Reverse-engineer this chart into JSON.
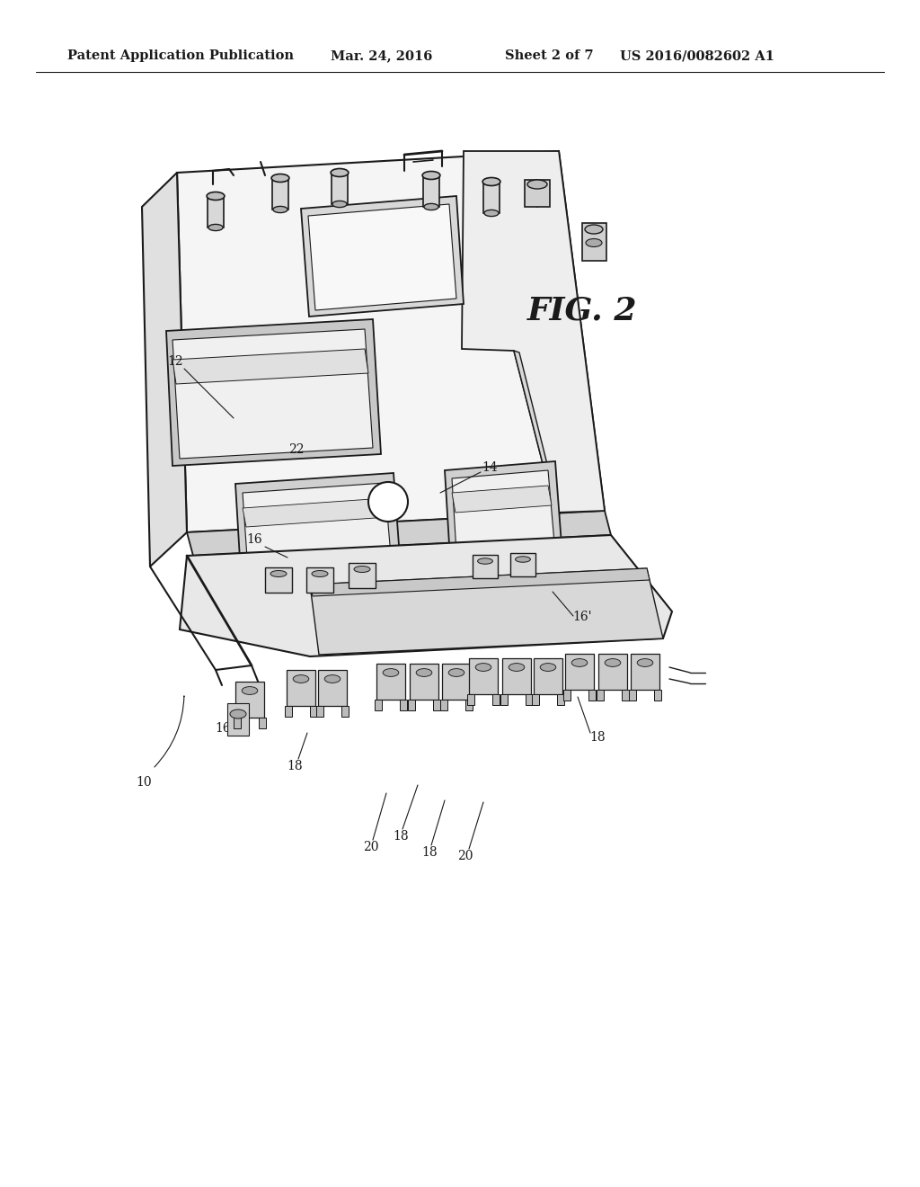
{
  "title": "Patent Application Publication",
  "date": "Mar. 24, 2016",
  "sheet": "Sheet 2 of 7",
  "patent_num": "US 2016/0082602 A1",
  "fig_label": "FIG. 2",
  "bg_color": "#ffffff",
  "line_color": "#1a1a1a",
  "header_font_size": 10.5,
  "fig_label_font_size": 26,
  "annotation_font_size": 10,
  "gray_light": "#e8e8e8",
  "gray_mid": "#d0d0d0",
  "gray_dark": "#b0b0b0",
  "gray_very_dark": "#888888"
}
